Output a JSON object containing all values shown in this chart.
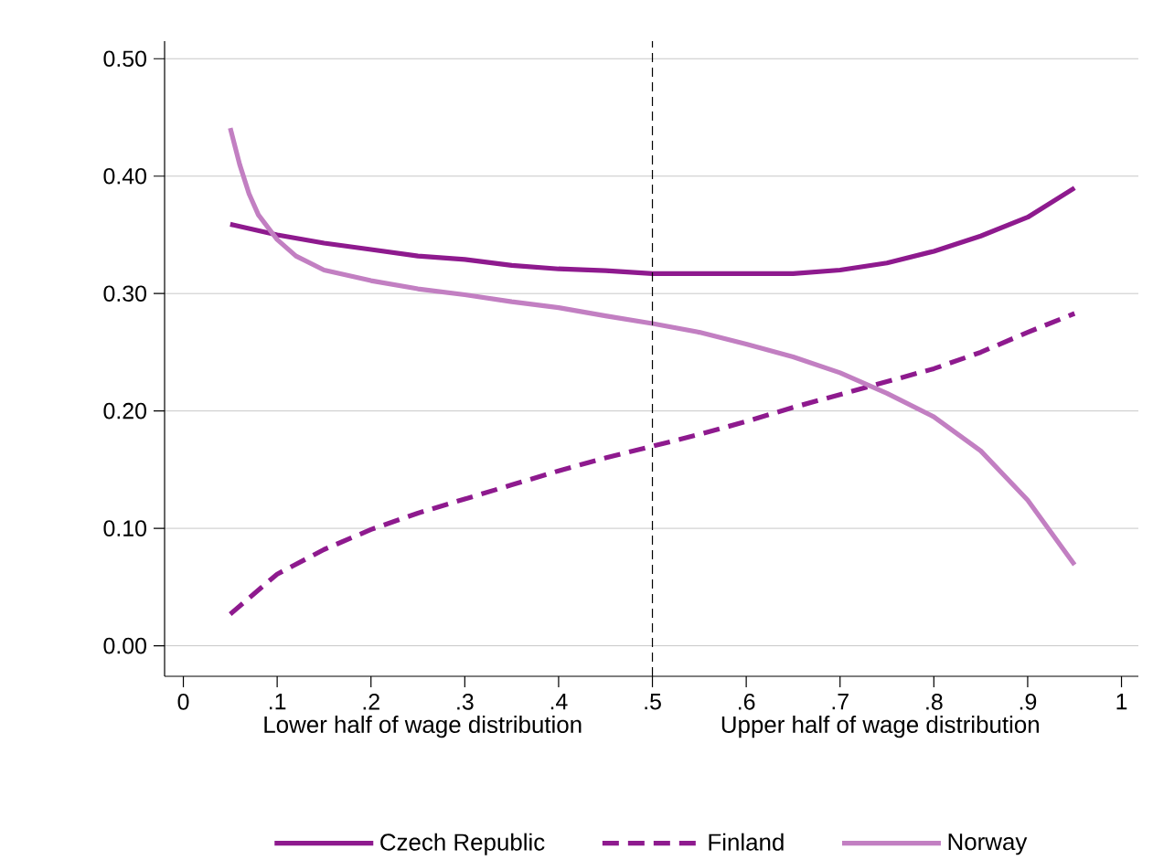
{
  "chart_data": {
    "type": "line",
    "x": [
      0.05,
      0.1,
      0.15,
      0.2,
      0.25,
      0.3,
      0.35,
      0.4,
      0.45,
      0.5,
      0.55,
      0.6,
      0.65,
      0.7,
      0.75,
      0.8,
      0.85,
      0.9,
      0.95
    ],
    "series": [
      {
        "name": "Czech Republic",
        "color": "#8e1a8e",
        "values": [
          0.359,
          0.35,
          0.343,
          0.3375,
          0.332,
          0.329,
          0.324,
          0.321,
          0.3195,
          0.317,
          0.317,
          0.317,
          0.317,
          0.32,
          0.326,
          0.336,
          0.349,
          0.365,
          0.39
        ]
      },
      {
        "name": "Finland",
        "color": "#8e1a8e",
        "line_style": "dashed",
        "values": [
          0.027,
          0.061,
          0.082,
          0.099,
          0.113,
          0.125,
          0.137,
          0.149,
          0.16,
          0.17,
          0.18,
          0.191,
          0.203,
          0.214,
          0.225,
          0.236,
          0.25,
          0.267,
          0.283
        ]
      },
      {
        "name": "Norway",
        "color": "#c27fc2",
        "x": [
          0.05,
          0.06,
          0.07,
          0.08,
          0.1,
          0.12,
          0.15,
          0.2,
          0.25,
          0.3,
          0.35,
          0.4,
          0.45,
          0.5,
          0.55,
          0.6,
          0.65,
          0.7,
          0.75,
          0.8,
          0.85,
          0.9,
          0.95
        ],
        "values": [
          0.441,
          0.41,
          0.385,
          0.367,
          0.346,
          0.332,
          0.32,
          0.311,
          0.304,
          0.299,
          0.293,
          0.288,
          0.281,
          0.2745,
          0.267,
          0.257,
          0.246,
          0.2325,
          0.215,
          0.195,
          0.166,
          0.124,
          0.069
        ]
      }
    ],
    "xlim": [
      -0.02,
      1.018
    ],
    "ylim": [
      -0.026,
      0.515
    ],
    "xticks": [
      0,
      {
        "value": 0.1,
        "label": ".1"
      },
      {
        "value": 0.2,
        "label": ".2"
      },
      {
        "value": 0.3,
        "label": ".3"
      },
      {
        "value": 0.4,
        "label": ".4"
      },
      {
        "value": 0.5,
        "label": ".5"
      },
      {
        "value": 0.6,
        "label": ".6"
      },
      {
        "value": 0.7,
        "label": ".7"
      },
      {
        "value": 0.8,
        "label": ".8"
      },
      {
        "value": 0.9,
        "label": ".9"
      },
      1
    ],
    "yticks": [
      {
        "value": 0,
        "label": "0.00"
      },
      {
        "value": 0.1,
        "label": "0.10"
      },
      {
        "value": 0.2,
        "label": "0.20"
      },
      {
        "value": 0.3,
        "label": "0.30"
      },
      {
        "value": 0.4,
        "label": "0.40"
      },
      {
        "value": 0.5,
        "label": "0.50"
      }
    ],
    "ref_lines": [
      {
        "axis": "x",
        "value": 0.5,
        "color": "#000000",
        "line_style": "dashed"
      }
    ],
    "annotations": [
      "Lower half of wage distribution",
      "Upper half of wage distribution"
    ],
    "grid": "y",
    "legend": "bottom",
    "marker": "none",
    "line_style": "solid"
  }
}
